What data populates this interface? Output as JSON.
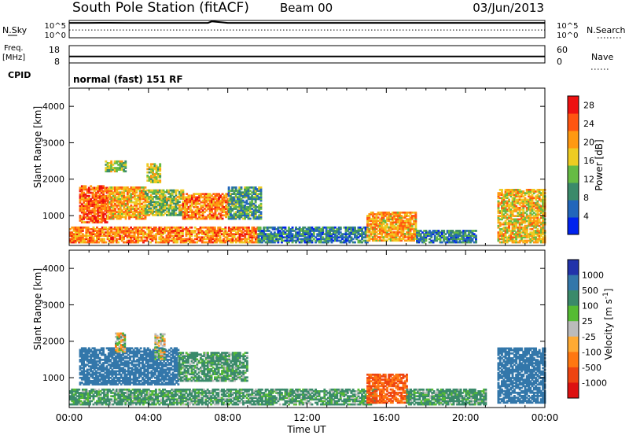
{
  "header": {
    "station": "South Pole Station (fitACF)",
    "beam": "Beam 00",
    "date": "03/Jun/2013"
  },
  "strip_labels": {
    "nsky": "N.Sky",
    "nsearch": "N.Search",
    "freq_top": "Freq.",
    "freq_unit": "[MHz]",
    "nave": "Nave",
    "cpid": "CPID",
    "cpid_value": "normal (fast) 151 RF",
    "sky_ticks": [
      "10^5",
      "10^0"
    ],
    "search_ticks": [
      "10^5",
      "10^0"
    ],
    "freq_ticks": [
      "18",
      "8"
    ],
    "nave_ticks": [
      "60",
      "0"
    ]
  },
  "colors": {
    "power_scale": [
      "#0022ee",
      "#2266bb",
      "#3a8a6a",
      "#66bb44",
      "#eecc22",
      "#ff9911",
      "#ff5511",
      "#ee1111"
    ],
    "velocity_scale": [
      "#2233aa",
      "#3377aa",
      "#3a8a6a",
      "#55bb33",
      "#bbbbbb",
      "#ffaa33",
      "#ff7711",
      "#ee4411",
      "#dd1111"
    ]
  },
  "chart_data": [
    {
      "type": "line",
      "panel": "N.Sky / N.Search",
      "xlim": [
        0,
        24
      ],
      "series": [
        {
          "name": "N.Sky",
          "x": [
            0,
            1,
            2,
            3,
            4,
            5,
            6,
            7,
            7.2,
            8,
            9,
            10,
            11,
            12,
            13,
            14,
            15,
            16,
            17,
            18,
            19,
            20,
            21,
            22,
            23,
            24
          ],
          "values": [
            30000,
            30000,
            31000,
            30000,
            30000,
            30000,
            30000,
            30000,
            90000,
            30000,
            30000,
            30000,
            30000,
            30000,
            30000,
            30000,
            30000,
            30000,
            30000,
            30000,
            30000,
            30000,
            30000,
            30000,
            30000,
            30000
          ]
        },
        {
          "name": "N.Search",
          "x": [
            0,
            2,
            4,
            6,
            8,
            10,
            12,
            14,
            16,
            18,
            20,
            22,
            24
          ],
          "values": [
            3,
            3,
            3,
            3,
            3,
            3,
            3,
            3,
            3,
            3,
            3,
            3,
            3
          ]
        }
      ],
      "yticks_left": [
        "10^5",
        "10^0"
      ],
      "yticks_right": [
        "10^5",
        "10^0"
      ]
    },
    {
      "type": "line",
      "panel": "Freq. / Nave",
      "xlim": [
        0,
        24
      ],
      "series": [
        {
          "name": "Freq.",
          "x": [
            0,
            24
          ],
          "values": [
            11.6,
            11.6
          ]
        },
        {
          "name": "Nave",
          "x": [
            0,
            24
          ],
          "values": [
            22,
            22
          ]
        }
      ],
      "ylim_left": [
        8,
        18
      ],
      "ylim_right": [
        0,
        60
      ]
    },
    {
      "type": "heatmap",
      "panel": "Power",
      "xlabel": "",
      "ylabel": "Slant Range [km]",
      "xlim": [
        0,
        24
      ],
      "ylim": [
        180,
        4500
      ],
      "yticks": [
        1000,
        2000,
        3000,
        4000
      ],
      "colorbar": {
        "label": "Power [dB]",
        "ticks": [
          "4",
          "8",
          "12",
          "16",
          "20",
          "24",
          "28"
        ],
        "range": [
          0,
          30
        ]
      },
      "regions": [
        {
          "t0": 0.0,
          "t1": 9.5,
          "r0": 250,
          "r1": 700,
          "level": 22
        },
        {
          "t0": 0.5,
          "t1": 1.9,
          "r0": 800,
          "r1": 1800,
          "level": 24
        },
        {
          "t0": 1.9,
          "t1": 3.8,
          "r0": 900,
          "r1": 1800,
          "level": 20
        },
        {
          "t0": 3.8,
          "t1": 5.7,
          "r0": 1000,
          "r1": 1700,
          "level": 14
        },
        {
          "t0": 5.7,
          "t1": 8.0,
          "r0": 900,
          "r1": 1600,
          "level": 22
        },
        {
          "t0": 8.0,
          "t1": 9.7,
          "r0": 900,
          "r1": 1800,
          "level": 10
        },
        {
          "t0": 1.8,
          "t1": 2.8,
          "r0": 2200,
          "r1": 2500,
          "level": 14
        },
        {
          "t0": 3.9,
          "t1": 4.6,
          "r0": 1900,
          "r1": 2400,
          "level": 16
        },
        {
          "t0": 9.5,
          "t1": 15.0,
          "r0": 250,
          "r1": 700,
          "level": 8
        },
        {
          "t0": 15.0,
          "t1": 17.5,
          "r0": 300,
          "r1": 1100,
          "level": 20
        },
        {
          "t0": 17.5,
          "t1": 20.5,
          "r0": 250,
          "r1": 600,
          "level": 8
        },
        {
          "t0": 21.6,
          "t1": 24.0,
          "r0": 250,
          "r1": 1700,
          "level": 18
        }
      ]
    },
    {
      "type": "heatmap",
      "panel": "Velocity",
      "xlabel": "Time UT",
      "ylabel": "Slant Range [km]",
      "xlim": [
        0,
        24
      ],
      "xticks": [
        "00:00",
        "04:00",
        "08:00",
        "12:00",
        "16:00",
        "20:00",
        "00:00"
      ],
      "ylim": [
        180,
        4500
      ],
      "yticks": [
        1000,
        2000,
        3000,
        4000
      ],
      "colorbar": {
        "label": "Velocity [m s^-1]",
        "ticks": [
          "1000",
          "500",
          "100",
          "25",
          "-25",
          "-100",
          "-500",
          "-1000"
        ]
      },
      "regions": [
        {
          "t0": 0.0,
          "t1": 9.5,
          "r0": 250,
          "r1": 700,
          "level": 100
        },
        {
          "t0": 0.5,
          "t1": 5.5,
          "r0": 800,
          "r1": 1800,
          "level": 500
        },
        {
          "t0": 5.5,
          "t1": 9.0,
          "r0": 900,
          "r1": 1700,
          "level": 100
        },
        {
          "t0": 2.3,
          "t1": 2.8,
          "r0": 1700,
          "r1": 2200,
          "level": 0
        },
        {
          "t0": 4.3,
          "t1": 4.8,
          "r0": 1500,
          "r1": 2200,
          "level": 0
        },
        {
          "t0": 9.5,
          "t1": 15.5,
          "r0": 250,
          "r1": 700,
          "level": 100
        },
        {
          "t0": 15.0,
          "t1": 17.0,
          "r0": 300,
          "r1": 1100,
          "level": -300
        },
        {
          "t0": 17.0,
          "t1": 21.0,
          "r0": 250,
          "r1": 700,
          "level": 100
        },
        {
          "t0": 21.6,
          "t1": 24.0,
          "r0": 300,
          "r1": 1800,
          "level": 500
        }
      ]
    }
  ]
}
